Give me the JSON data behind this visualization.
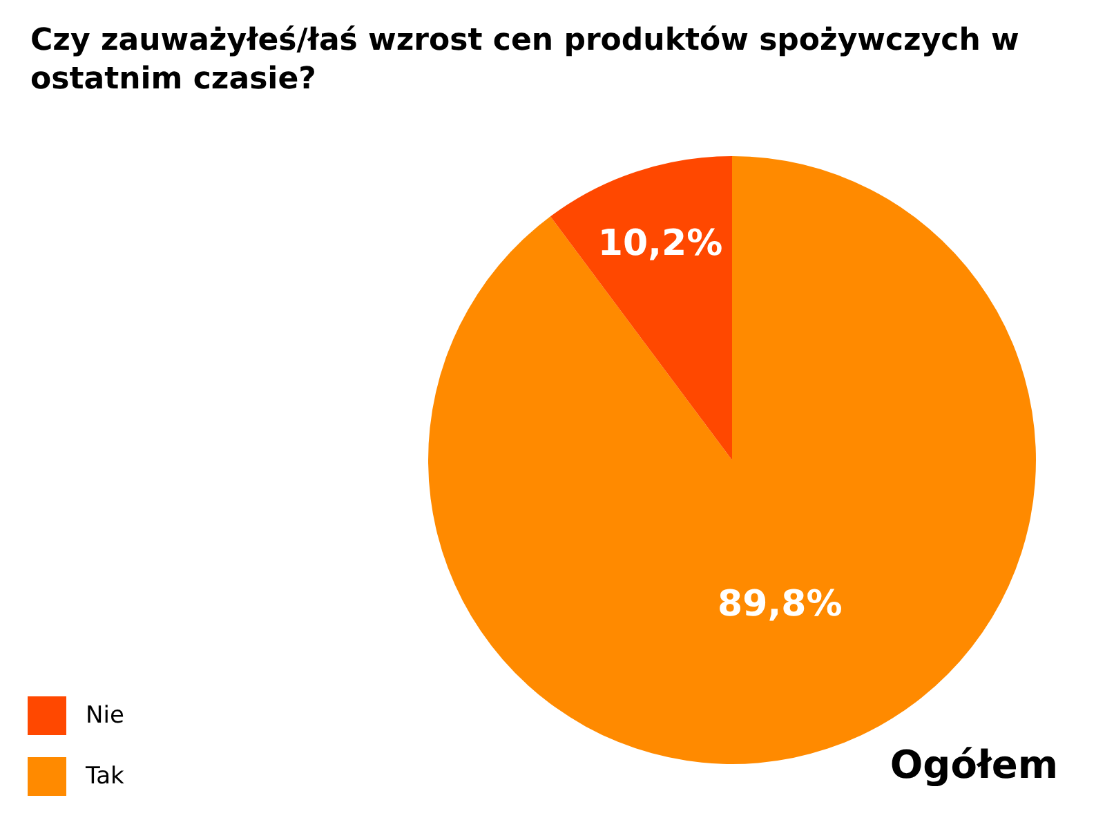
{
  "chart_data": {
    "type": "pie",
    "title": "Czy zauważyłeś/łaś wzrost cen produktów spożywczych w ostatnim czasie?",
    "categories": [
      "Tak",
      "Nie"
    ],
    "values": [
      89.8,
      10.2
    ],
    "colors": [
      "#ff8a00",
      "#ff4800"
    ],
    "value_labels": [
      "89,8%",
      "10,2%"
    ],
    "legend": "bottom left",
    "annotations": [
      "Ogółem"
    ]
  }
}
